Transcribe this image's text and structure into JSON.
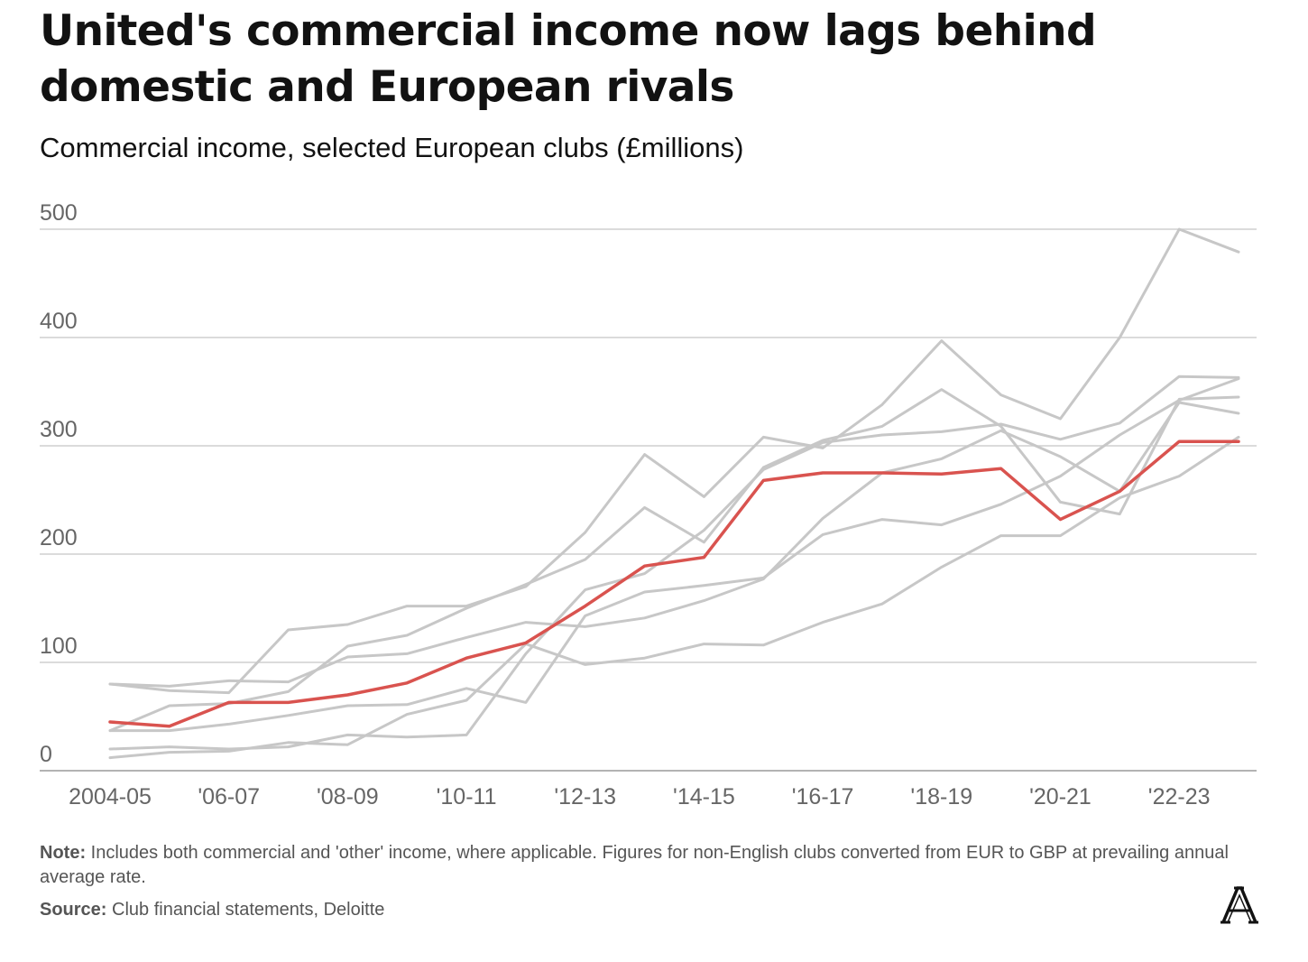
{
  "title": "United's commercial income now lags behind domestic and European rivals",
  "subtitle": "Commercial income, selected European clubs (£millions)",
  "note": {
    "label": "Note:",
    "text": " Includes both commercial and 'other' income, where applicable. Figures for non-English clubs converted from EUR to GBP at prevailing annual average rate."
  },
  "source": {
    "label": "Source:",
    "text": " Club financial statements, Deloitte"
  },
  "logo": {
    "icon": "athletic-a-logo-icon"
  },
  "chart_data": {
    "type": "line",
    "title": "United's commercial income now lags behind domestic and European rivals",
    "subtitle": "Commercial income, selected European clubs (£millions)",
    "xlabel": "",
    "ylabel": "",
    "ylim": [
      0,
      500
    ],
    "yticks": [
      0,
      100,
      200,
      300,
      400,
      500
    ],
    "grid": true,
    "legend": "none",
    "x": [
      "2004-05",
      "2005-06",
      "2006-07",
      "2007-08",
      "2008-09",
      "2009-10",
      "2010-11",
      "2011-12",
      "2012-13",
      "2013-14",
      "2014-15",
      "2015-16",
      "2016-17",
      "2017-18",
      "2018-19",
      "2019-20",
      "2020-21",
      "2021-22",
      "2022-23",
      "2023-24"
    ],
    "xtick_labels": [
      "2004-05",
      "'06-07",
      "'08-09",
      "'10-11",
      "'12-13",
      "'14-15",
      "'16-17",
      "'18-19",
      "'20-21",
      "'22-23"
    ],
    "xtick_indices": [
      0,
      2,
      4,
      6,
      8,
      10,
      12,
      14,
      16,
      18
    ],
    "highlight_color": "#d9534f",
    "context_color": "#c7c7c7",
    "series": [
      {
        "highlight": false,
        "values": [
          80,
          78,
          83,
          82,
          105,
          108,
          123,
          137,
          133,
          141,
          157,
          177,
          233,
          275,
          288,
          314,
          290,
          258,
          340,
          330
        ]
      },
      {
        "highlight": false,
        "values": [
          80,
          74,
          72,
          130,
          135,
          152,
          152,
          170,
          220,
          292,
          253,
          308,
          298,
          338,
          397,
          347,
          325,
          400,
          500,
          479
        ]
      },
      {
        "highlight": false,
        "values": [
          37,
          60,
          62,
          73,
          115,
          125,
          150,
          172,
          195,
          243,
          211,
          280,
          305,
          318,
          352,
          318,
          248,
          237,
          343,
          345
        ]
      },
      {
        "highlight": false,
        "values": [
          37,
          37,
          43,
          51,
          60,
          61,
          76,
          63,
          143,
          165,
          171,
          178,
          218,
          232,
          227,
          246,
          272,
          310,
          342,
          362
        ]
      },
      {
        "highlight": false,
        "values": [
          20,
          22,
          20,
          22,
          33,
          31,
          33,
          108,
          167,
          182,
          222,
          278,
          303,
          310,
          313,
          320,
          306,
          321,
          364,
          363
        ]
      },
      {
        "highlight": false,
        "values": [
          12,
          17,
          18,
          26,
          24,
          52,
          65,
          117,
          98,
          104,
          117,
          116,
          137,
          154,
          188,
          217,
          217,
          252,
          272,
          308
        ]
      },
      {
        "highlight": true,
        "values": [
          45,
          41,
          63,
          63,
          70,
          81,
          104,
          118,
          152,
          189,
          197,
          268,
          275,
          275,
          274,
          279,
          232,
          258,
          304,
          304
        ]
      }
    ]
  }
}
